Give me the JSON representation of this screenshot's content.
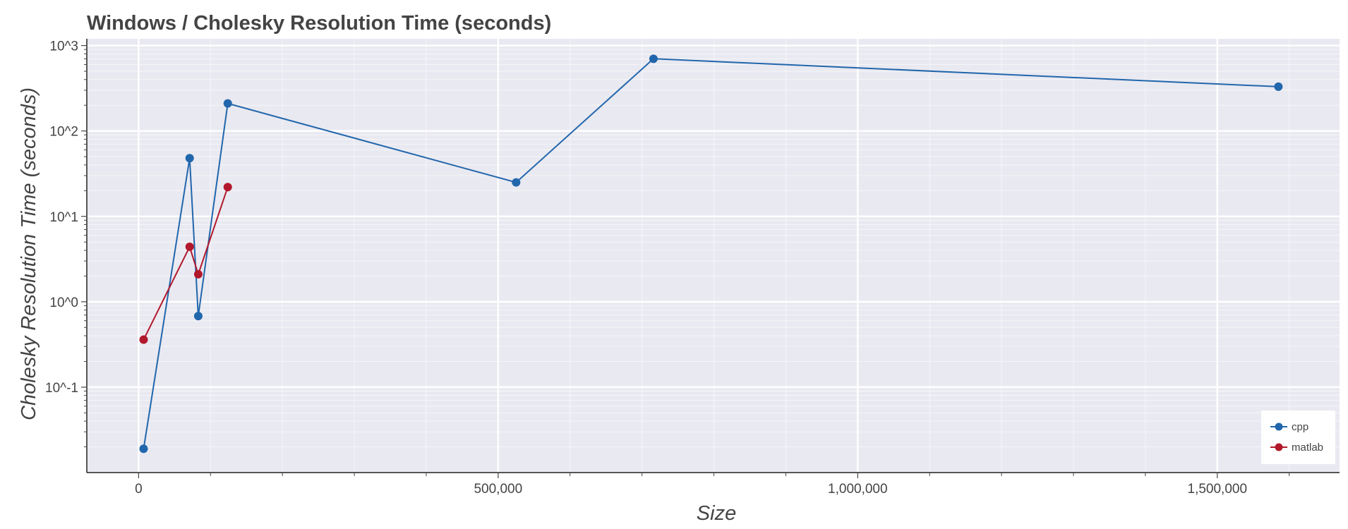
{
  "chart_data": {
    "type": "line",
    "title": "Windows / Cholesky Resolution Time (seconds)",
    "xlabel": "Size",
    "ylabel": "Cholesky Resolution Time (seconds)",
    "x_scale": "linear",
    "y_scale": "log",
    "xlim": [
      -72000,
      1670000
    ],
    "ylim": [
      0.01,
      1200
    ],
    "x_ticks": [
      0,
      500000,
      1000000,
      1500000
    ],
    "x_tick_labels": [
      "0",
      "500,000",
      "1,000,000",
      "1,500,000"
    ],
    "y_ticks": [
      0.1,
      1,
      10,
      100,
      1000
    ],
    "y_tick_labels": [
      "10^-1",
      "10^0",
      "10^1",
      "10^2",
      "10^3"
    ],
    "grid": true,
    "legend": "bottom-right",
    "series": [
      {
        "name": "cpp",
        "color": "#2166ac",
        "x": [
          7000,
          71000,
          83000,
          124000,
          525000,
          716000,
          1585000
        ],
        "y": [
          0.019,
          48,
          0.68,
          210,
          25,
          700,
          330
        ]
      },
      {
        "name": "matlab",
        "color": "#b2182b",
        "x": [
          7000,
          71000,
          83000,
          124000
        ],
        "y": [
          0.36,
          4.4,
          2.1,
          22
        ]
      }
    ]
  }
}
